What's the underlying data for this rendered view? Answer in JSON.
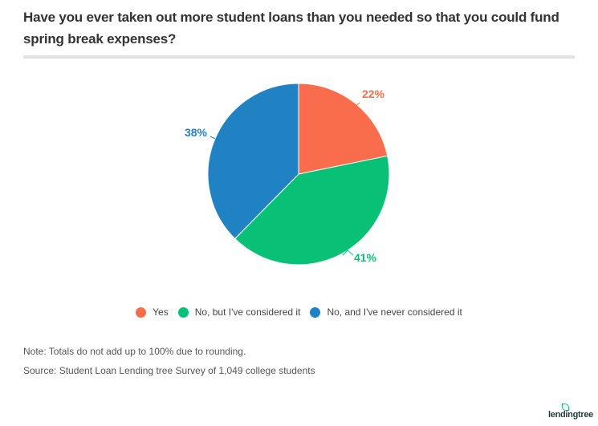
{
  "header": {
    "title": "Have you ever taken out more student loans than you needed so that you could fund spring break expenses?"
  },
  "chart_data": {
    "type": "pie",
    "title": "Have you ever taken out more student loans than you needed so that you could fund spring break expenses?",
    "categories": [
      "Yes",
      "No, but I've considered it",
      "No, and I've never considered it"
    ],
    "values": [
      22,
      41,
      38
    ],
    "labels": [
      "22%",
      "41%",
      "38%"
    ],
    "colors": [
      "#f96c4c",
      "#08c177",
      "#2082c2"
    ],
    "start_angle": "12 o'clock, clockwise",
    "legend_position": "bottom"
  },
  "legend": {
    "items": [
      {
        "label": "Yes",
        "color": "#f96c4c"
      },
      {
        "label": "No, but I've considered it",
        "color": "#08c177"
      },
      {
        "label": "No, and I've never considered it",
        "color": "#2082c2"
      }
    ]
  },
  "footer": {
    "note": "Note: Totals do not add up to 100% due to rounding.",
    "source": "Source: Student Loan Lending tree Survey of 1,049 college students",
    "logo": "lendingtree"
  }
}
